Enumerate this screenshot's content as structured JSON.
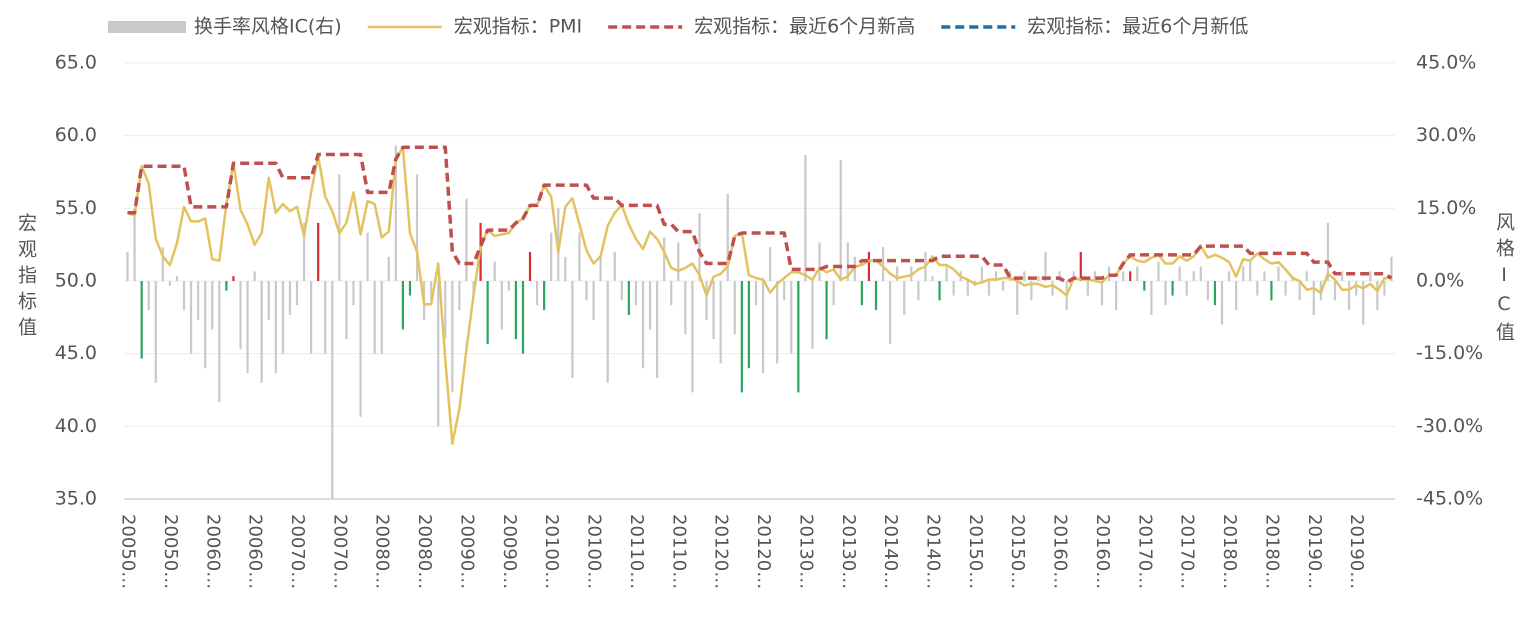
{
  "chart_data": {
    "type": "combo",
    "ylabel": "宏观指标值",
    "y2label": "风格IC值",
    "ylim": [
      35,
      65
    ],
    "yticks": [
      {
        "value": 35,
        "label": "35.0"
      },
      {
        "value": 40,
        "label": "40.0"
      },
      {
        "value": 45,
        "label": "45.0"
      },
      {
        "value": 50,
        "label": "50.0"
      },
      {
        "value": 55,
        "label": "55.0"
      },
      {
        "value": 60,
        "label": "60.0"
      },
      {
        "value": 65,
        "label": "65.0"
      }
    ],
    "y2lim": [
      -45,
      45
    ],
    "y2ticks": [
      {
        "value": -45,
        "label": "-45.0%"
      },
      {
        "value": -30,
        "label": "-30.0%"
      },
      {
        "value": -15,
        "label": "-15.0%"
      },
      {
        "value": 0,
        "label": "0.0%"
      },
      {
        "value": 15,
        "label": "15.0%"
      },
      {
        "value": 30,
        "label": "30.0%"
      },
      {
        "value": 45,
        "label": "45.0%"
      }
    ],
    "grid": true,
    "legend": "top",
    "categories": [
      "20050…",
      null,
      null,
      null,
      null,
      null,
      "20050…",
      null,
      null,
      null,
      null,
      null,
      "20060…",
      null,
      null,
      null,
      null,
      null,
      "20060…",
      null,
      null,
      null,
      null,
      null,
      "20070…",
      null,
      null,
      null,
      null,
      null,
      "20070…",
      null,
      null,
      null,
      null,
      null,
      "20080…",
      null,
      null,
      null,
      null,
      null,
      "20080…",
      null,
      null,
      null,
      null,
      null,
      "20090…",
      null,
      null,
      null,
      null,
      null,
      "20090…",
      null,
      null,
      null,
      null,
      null,
      "20100…",
      null,
      null,
      null,
      null,
      null,
      "20100…",
      null,
      null,
      null,
      null,
      null,
      "20110…",
      null,
      null,
      null,
      null,
      null,
      "20110…",
      null,
      null,
      null,
      null,
      null,
      "20120…",
      null,
      null,
      null,
      null,
      null,
      "20120…",
      null,
      null,
      null,
      null,
      null,
      "20130…",
      null,
      null,
      null,
      null,
      null,
      "20130…",
      null,
      null,
      null,
      null,
      null,
      "20140…",
      null,
      null,
      null,
      null,
      null,
      "20140…",
      null,
      null,
      null,
      null,
      null,
      "20150…",
      null,
      null,
      null,
      null,
      null,
      "20150…",
      null,
      null,
      null,
      null,
      null,
      "20160…",
      null,
      null,
      null,
      null,
      null,
      "20160…",
      null,
      null,
      null,
      null,
      null,
      "20170…",
      null,
      null,
      null,
      null,
      null,
      "20170…",
      null,
      null,
      null,
      null,
      null,
      "20180…",
      null,
      null,
      null,
      null,
      null,
      "20180…",
      null,
      null,
      null,
      null,
      null,
      "20190…",
      null,
      null,
      null,
      null,
      null,
      "20190…",
      null,
      null,
      null,
      null,
      null
    ],
    "series": [
      {
        "name": "换手率风格IC(右)",
        "type": "bar",
        "axis": "y2",
        "color": "#c9c9c9",
        "values": [
          6,
          15,
          -16,
          -6,
          -21,
          7,
          -1,
          1,
          -6,
          -15,
          -8,
          -18,
          -10,
          -25,
          -2,
          1,
          -14,
          -19,
          2,
          -21,
          -8,
          -19,
          -15,
          -7,
          -5,
          12,
          -15,
          12,
          -15,
          -45,
          22,
          -12,
          -5,
          -28,
          10,
          -15,
          -15,
          5,
          28,
          -10,
          -3,
          22,
          -8,
          -4,
          -30,
          -12,
          -23,
          -6,
          17,
          -3,
          12,
          -13,
          4,
          -10,
          -2,
          -12,
          -15,
          6,
          -5,
          -6,
          10,
          15,
          5,
          -20,
          10,
          -4,
          -8,
          5,
          -21,
          6,
          -4,
          -7,
          -5,
          -18,
          -10,
          -20,
          9,
          -5,
          8,
          -11,
          -23,
          14,
          -8,
          -12,
          -17,
          18,
          -11,
          -23,
          -18,
          -5,
          -19,
          7,
          -17,
          -4,
          -15,
          -23,
          26,
          -14,
          8,
          -12,
          -5,
          25,
          8,
          5,
          -5,
          6,
          -6,
          7,
          -13,
          3,
          -7,
          3,
          -4,
          6,
          1,
          -4,
          3,
          -3,
          2,
          -3,
          -1,
          3,
          -3,
          2,
          -2,
          2,
          -7,
          2,
          -4,
          1,
          6,
          -3,
          2,
          -6,
          2,
          6,
          -3,
          2,
          -5,
          3,
          -6,
          2,
          2,
          3,
          -2,
          -7,
          4,
          -5,
          -3,
          3,
          -3,
          2,
          3,
          -4,
          -5,
          -9,
          2,
          -6,
          3,
          4,
          -3,
          2,
          -4,
          3,
          -3,
          1,
          -4,
          2,
          -7,
          -4,
          12,
          -4,
          2,
          -6,
          -3,
          -9,
          2,
          -6,
          -3,
          5
        ],
        "colors": [
          "#c9c9c9",
          "#c9c9c9",
          "#28a55f",
          "#c9c9c9",
          "#c9c9c9",
          "#c9c9c9",
          "#c9c9c9",
          "#c9c9c9",
          "#c9c9c9",
          "#c9c9c9",
          "#c9c9c9",
          "#c9c9c9",
          "#c9c9c9",
          "#c9c9c9",
          "#28a55f",
          "#d62f2f",
          "#c9c9c9",
          "#c9c9c9",
          "#c9c9c9",
          "#c9c9c9",
          "#c9c9c9",
          "#c9c9c9",
          "#c9c9c9",
          "#c9c9c9",
          "#c9c9c9",
          "#c9c9c9",
          "#c9c9c9",
          "#d62f2f",
          "#c9c9c9",
          "#c9c9c9",
          "#c9c9c9",
          "#c9c9c9",
          "#c9c9c9",
          "#c9c9c9",
          "#c9c9c9",
          "#c9c9c9",
          "#c9c9c9",
          "#c9c9c9",
          "#c9c9c9",
          "#28a55f",
          "#28a55f",
          "#c9c9c9",
          "#c9c9c9",
          "#c9c9c9",
          "#c9c9c9",
          "#c9c9c9",
          "#c9c9c9",
          "#c9c9c9",
          "#c9c9c9",
          "#c9c9c9",
          "#d62f2f",
          "#28a55f",
          "#c9c9c9",
          "#c9c9c9",
          "#c9c9c9",
          "#28a55f",
          "#28a55f",
          "#d62f2f",
          "#c9c9c9",
          "#28a55f",
          "#c9c9c9",
          "#c9c9c9",
          "#c9c9c9",
          "#c9c9c9",
          "#c9c9c9",
          "#c9c9c9",
          "#c9c9c9",
          "#c9c9c9",
          "#c9c9c9",
          "#c9c9c9",
          "#c9c9c9",
          "#28a55f",
          "#c9c9c9",
          "#c9c9c9",
          "#c9c9c9",
          "#c9c9c9",
          "#c9c9c9",
          "#c9c9c9",
          "#c9c9c9",
          "#c9c9c9",
          "#c9c9c9",
          "#c9c9c9",
          "#c9c9c9",
          "#c9c9c9",
          "#c9c9c9",
          "#c9c9c9",
          "#c9c9c9",
          "#28a55f",
          "#28a55f",
          "#c9c9c9",
          "#c9c9c9",
          "#c9c9c9",
          "#c9c9c9",
          "#c9c9c9",
          "#c9c9c9",
          "#28a55f",
          "#c9c9c9",
          "#c9c9c9",
          "#c9c9c9",
          "#28a55f",
          "#c9c9c9",
          "#c9c9c9",
          "#c9c9c9",
          "#c9c9c9",
          "#28a55f",
          "#d62f2f",
          "#28a55f",
          "#c9c9c9",
          "#c9c9c9",
          "#c9c9c9",
          "#c9c9c9",
          "#c9c9c9",
          "#c9c9c9",
          "#c9c9c9",
          "#c9c9c9",
          "#28a55f",
          "#c9c9c9",
          "#c9c9c9",
          "#c9c9c9",
          "#c9c9c9",
          "#c9c9c9",
          "#c9c9c9",
          "#c9c9c9",
          "#c9c9c9",
          "#c9c9c9",
          "#c9c9c9",
          "#c9c9c9",
          "#c9c9c9",
          "#c9c9c9",
          "#c9c9c9",
          "#c9c9c9",
          "#c9c9c9",
          "#c9c9c9",
          "#c9c9c9",
          "#c9c9c9",
          "#d62f2f",
          "#c9c9c9",
          "#c9c9c9",
          "#c9c9c9",
          "#c9c9c9",
          "#c9c9c9",
          "#c9c9c9",
          "#d62f2f",
          "#c9c9c9",
          "#28a55f",
          "#c9c9c9",
          "#c9c9c9",
          "#c9c9c9",
          "#28a55f",
          "#c9c9c9",
          "#c9c9c9",
          "#c9c9c9",
          "#c9c9c9",
          "#c9c9c9",
          "#28a55f",
          "#c9c9c9",
          "#c9c9c9",
          "#c9c9c9",
          "#c9c9c9",
          "#c9c9c9",
          "#c9c9c9",
          "#c9c9c9",
          "#28a55f",
          "#c9c9c9",
          "#c9c9c9",
          "#c9c9c9",
          "#c9c9c9",
          "#c9c9c9",
          "#c9c9c9",
          "#c9c9c9",
          "#c9c9c9",
          "#c9c9c9",
          "#c9c9c9",
          "#c9c9c9",
          "#c9c9c9",
          "#c9c9c9",
          "#c9c9c9",
          "#c9c9c9",
          "#c9c9c9",
          "#c9c9c9"
        ]
      },
      {
        "name": "宏观指标：PMI",
        "type": "line",
        "color": "#e2c35f",
        "dash": false,
        "values": [
          54.7,
          54.5,
          57.9,
          56.7,
          52.9,
          51.7,
          51.1,
          52.6,
          55.1,
          54.1,
          54.1,
          54.3,
          51.5,
          51.4,
          55.3,
          58.1,
          54.9,
          53.9,
          52.5,
          53.3,
          57.1,
          54.7,
          55.3,
          54.8,
          55.1,
          53.1,
          56.1,
          58.6,
          55.8,
          54.8,
          53.3,
          54.0,
          56.1,
          53.2,
          55.5,
          55.3,
          53.0,
          53.4,
          58.4,
          59.2,
          53.3,
          52.0,
          48.4,
          48.4,
          51.2,
          44.6,
          38.8,
          41.2,
          45.3,
          49.0,
          52.4,
          53.5,
          53.1,
          53.2,
          53.3,
          54.0,
          54.3,
          55.2,
          55.2,
          56.6,
          55.8,
          52.0,
          55.1,
          55.7,
          53.9,
          52.1,
          51.2,
          51.7,
          53.8,
          54.7,
          55.2,
          53.9,
          52.9,
          52.2,
          53.4,
          52.9,
          52.0,
          50.9,
          50.7,
          50.9,
          51.2,
          50.4,
          49.0,
          50.3,
          50.5,
          51.0,
          53.1,
          53.3,
          50.4,
          50.2,
          50.1,
          49.2,
          49.8,
          50.2,
          50.6,
          50.6,
          50.4,
          50.1,
          50.9,
          50.6,
          50.8,
          50.1,
          50.3,
          51.0,
          51.1,
          51.4,
          51.4,
          51.0,
          50.5,
          50.2,
          50.3,
          50.4,
          50.8,
          51.0,
          51.7,
          51.1,
          51.1,
          50.8,
          50.3,
          50.1,
          49.8,
          49.9,
          50.1,
          50.1,
          50.2,
          50.2,
          50.0,
          49.7,
          49.8,
          49.8,
          49.6,
          49.7,
          49.4,
          49.0,
          50.2,
          50.1,
          50.1,
          50.0,
          49.9,
          50.4,
          50.4,
          51.2,
          51.7,
          51.4,
          51.3,
          51.6,
          51.8,
          51.2,
          51.2,
          51.7,
          51.4,
          51.7,
          52.4,
          51.6,
          51.8,
          51.6,
          51.3,
          50.3,
          51.5,
          51.4,
          51.9,
          51.5,
          51.2,
          51.3,
          50.8,
          50.2,
          50.0,
          49.4,
          49.5,
          49.2,
          50.5,
          50.1,
          49.4,
          49.4,
          49.7,
          49.5,
          49.8,
          49.3,
          50.2,
          50.2
        ]
      },
      {
        "name": "宏观指标：最近6个月新高",
        "type": "line",
        "color": "#c0504d",
        "dash": true,
        "values": [
          54.7,
          54.7,
          57.9,
          57.9,
          57.9,
          57.9,
          57.9,
          57.9,
          57.9,
          55.1,
          55.1,
          55.1,
          55.1,
          55.1,
          55.1,
          58.1,
          58.1,
          58.1,
          58.1,
          58.1,
          58.1,
          58.1,
          57.1,
          57.1,
          57.1,
          57.1,
          57.1,
          58.7,
          58.7,
          58.7,
          58.7,
          58.7,
          58.7,
          58.7,
          56.1,
          56.1,
          56.1,
          56.1,
          58.4,
          59.2,
          59.2,
          59.2,
          59.2,
          59.2,
          59.2,
          59.2,
          52.0,
          51.2,
          51.2,
          51.2,
          52.4,
          53.5,
          53.5,
          53.5,
          53.5,
          54.0,
          54.3,
          55.2,
          55.2,
          56.6,
          56.6,
          56.6,
          56.6,
          56.6,
          56.6,
          56.6,
          55.7,
          55.7,
          55.7,
          55.7,
          55.2,
          55.2,
          55.2,
          55.2,
          55.2,
          55.2,
          53.9,
          53.9,
          53.4,
          53.4,
          53.4,
          52.0,
          51.2,
          51.2,
          51.2,
          51.2,
          53.1,
          53.3,
          53.3,
          53.3,
          53.3,
          53.3,
          53.3,
          53.3,
          50.8,
          50.8,
          50.8,
          50.8,
          50.8,
          51.0,
          51.0,
          51.0,
          51.0,
          51.0,
          51.4,
          51.4,
          51.4,
          51.4,
          51.4,
          51.4,
          51.4,
          51.4,
          51.4,
          51.4,
          51.4,
          51.7,
          51.7,
          51.7,
          51.7,
          51.7,
          51.7,
          51.7,
          51.1,
          51.1,
          51.1,
          50.2,
          50.2,
          50.2,
          50.2,
          50.2,
          50.2,
          50.2,
          50.2,
          49.9,
          50.2,
          50.2,
          50.2,
          50.2,
          50.2,
          50.4,
          50.4,
          51.2,
          51.8,
          51.8,
          51.8,
          51.8,
          51.8,
          51.8,
          51.8,
          51.8,
          51.8,
          51.8,
          52.4,
          52.4,
          52.4,
          52.4,
          52.4,
          52.4,
          52.4,
          51.9,
          51.9,
          51.9,
          51.9,
          51.9,
          51.9,
          51.9,
          51.9,
          51.9,
          51.3,
          51.3,
          51.3,
          50.5,
          50.5,
          50.5,
          50.5,
          50.5,
          50.5,
          50.5,
          50.5,
          50.2
        ]
      },
      {
        "name": "宏观指标：最近6个月新低",
        "type": "line",
        "color": "#1f6ea6",
        "dash": true,
        "values": [
          null,
          null,
          null,
          null,
          null,
          null,
          null,
          null,
          null,
          null,
          null,
          null,
          null,
          null,
          null,
          null,
          null,
          null,
          null,
          null,
          null,
          null,
          null,
          null,
          null,
          null,
          null,
          null,
          null,
          null,
          null,
          null,
          null,
          null,
          null,
          null,
          null,
          null,
          null,
          null,
          null,
          null,
          null,
          null,
          null,
          null,
          null,
          null,
          null,
          null,
          null,
          null,
          null,
          null,
          null,
          null,
          null,
          null,
          null,
          null,
          null,
          null,
          null,
          null,
          null,
          null,
          null,
          null,
          null,
          null,
          null,
          null,
          null,
          null,
          null,
          null,
          null,
          null,
          null,
          null,
          null,
          null,
          null,
          null,
          null,
          null,
          null,
          null,
          null,
          null,
          null,
          null,
          null,
          null,
          null,
          null,
          null,
          null,
          null,
          null,
          null,
          null,
          null,
          null,
          null,
          null,
          null,
          null,
          null,
          null,
          null,
          null,
          null,
          null,
          null,
          null,
          null,
          null,
          null,
          null,
          null,
          null,
          null,
          null,
          null,
          null,
          null,
          null,
          null,
          null,
          null,
          null,
          null,
          null,
          null,
          null,
          null,
          null,
          null,
          null,
          null,
          null,
          null,
          null,
          null,
          null,
          null,
          null,
          null,
          null,
          null,
          null,
          null,
          null,
          null,
          null,
          null,
          null,
          null,
          null,
          null,
          null,
          null,
          null,
          null,
          null,
          null,
          null,
          null,
          null,
          null,
          null,
          null,
          null,
          null,
          null,
          null,
          null,
          null,
          null
        ]
      }
    ]
  }
}
